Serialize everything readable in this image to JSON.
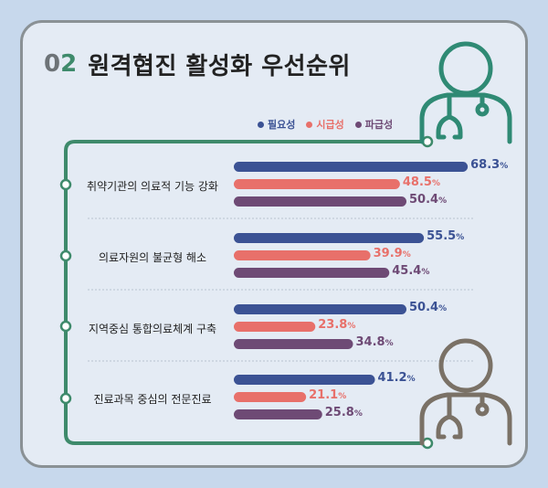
{
  "header": {
    "number_prefix": "0",
    "number_suffix": "2",
    "title": "원격협진 활성화 우선순위"
  },
  "legend": [
    {
      "name": "필요성",
      "color": "#3b5294"
    },
    {
      "name": "시급성",
      "color": "#e8706a"
    },
    {
      "name": "파급성",
      "color": "#6e4a75"
    }
  ],
  "colors": {
    "frame": "#3e8a6b",
    "doctor_top": "#2f8a74",
    "doctor_bottom": "#7a7166"
  },
  "icons": [
    "doctor-icon",
    "doctor-icon"
  ],
  "chart_data": {
    "type": "bar",
    "orientation": "horizontal",
    "categories": [
      "취약기관의 의료적 기능 강화",
      "의료자원의 불균형 해소",
      "지역중심 통합의료체계 구축",
      "진료과목 중심의 전문진료"
    ],
    "series": [
      {
        "name": "필요성",
        "values": [
          68.3,
          55.5,
          50.4,
          41.2
        ]
      },
      {
        "name": "시급성",
        "values": [
          48.5,
          39.9,
          23.8,
          21.1
        ]
      },
      {
        "name": "파급성",
        "values": [
          50.4,
          45.4,
          34.8,
          25.8
        ]
      }
    ],
    "unit": "%",
    "xlim": [
      0,
      70
    ],
    "grid": false,
    "legend_position": "top"
  }
}
